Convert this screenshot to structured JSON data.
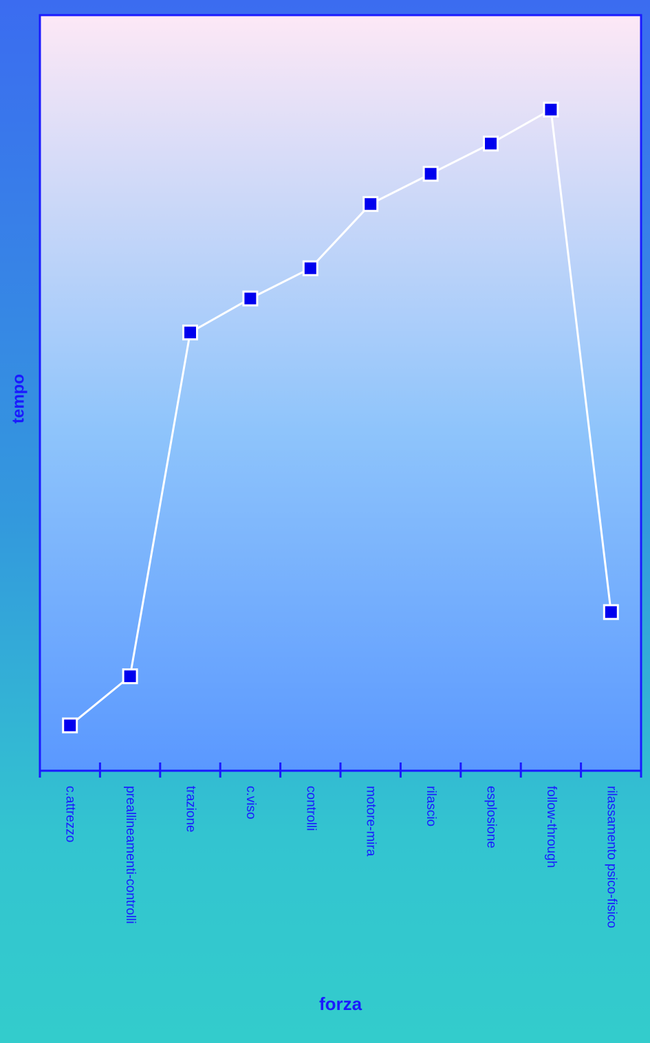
{
  "chart_data": {
    "type": "line",
    "x_label": "forza",
    "y_label": "tempo",
    "categories": [
      "c.attrezzo",
      "preallineamenti-controlli",
      "trazione",
      "c.viso",
      "controlli",
      "motore-mira",
      "rilascio",
      "esplosione",
      "follow-through",
      "rilassamento psico-fisico"
    ],
    "series": [
      {
        "color": "#0000ee",
        "values": [
          6,
          12.5,
          58,
          62.5,
          66.5,
          75,
          79,
          83,
          87.5,
          21
        ]
      }
    ],
    "ylim": [
      0,
      100
    ],
    "grid": false
  }
}
